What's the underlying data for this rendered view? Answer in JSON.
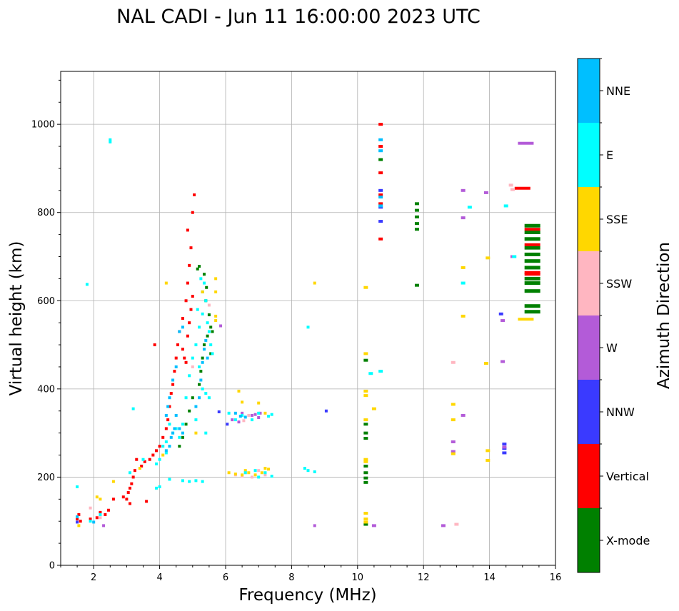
{
  "chart_data": {
    "type": "scatter",
    "title": "NAL CADI - Jun 11 16:00:00 2023 UTC",
    "xlabel": "Frequency (MHz)",
    "ylabel": "Virtual height (km)",
    "xlim": [
      1,
      16
    ],
    "ylim": [
      0,
      1120
    ],
    "xticks": [
      2,
      4,
      6,
      8,
      10,
      12,
      14,
      16
    ],
    "yticks": [
      0,
      200,
      400,
      600,
      800,
      1000
    ],
    "grid": true,
    "colorbar": {
      "title": "Azimuth Direction",
      "categories": [
        {
          "name": "X-mode",
          "color": "#008000"
        },
        {
          "name": "Vertical",
          "color": "#ff0000"
        },
        {
          "name": "NNW",
          "color": "#3a3aff"
        },
        {
          "name": "W",
          "color": "#b35bd8"
        },
        {
          "name": "SSW",
          "color": "#ffb6c1"
        },
        {
          "name": "SSE",
          "color": "#ffd700"
        },
        {
          "name": "E",
          "color": "#00ffff"
        },
        {
          "name": "NNE",
          "color": "#00bfff"
        }
      ]
    },
    "series": [
      {
        "name": "X-mode",
        "points": [
          [
            5.15,
            672
          ],
          [
            5.2,
            678
          ],
          [
            5.3,
            620
          ],
          [
            5.4,
            600
          ],
          [
            5.5,
            568
          ],
          [
            5.55,
            540
          ],
          [
            5.45,
            520
          ],
          [
            5.35,
            500
          ],
          [
            5.3,
            470
          ],
          [
            5.25,
            440
          ],
          [
            5.2,
            410
          ],
          [
            5.0,
            380
          ],
          [
            4.8,
            320
          ],
          [
            4.7,
            290
          ],
          [
            4.6,
            270
          ],
          [
            4.9,
            350
          ],
          [
            5.35,
            660
          ],
          [
            5.42,
            630
          ],
          [
            5.6,
            530
          ],
          [
            5.55,
            480
          ],
          [
            10.25,
            320
          ],
          [
            10.25,
            300
          ],
          [
            10.25,
            288
          ],
          [
            10.25,
            225
          ],
          [
            10.25,
            210
          ],
          [
            10.25,
            198
          ],
          [
            10.25,
            188
          ],
          [
            10.25,
            465
          ],
          [
            10.25,
            93
          ],
          [
            11.8,
            820
          ],
          [
            11.8,
            805
          ],
          [
            11.8,
            790
          ],
          [
            11.8,
            775
          ],
          [
            11.8,
            762
          ],
          [
            11.8,
            635
          ],
          [
            10.7,
            920
          ],
          [
            15.3,
            770
          ],
          [
            15.3,
            755
          ],
          [
            15.3,
            740
          ],
          [
            15.3,
            720
          ],
          [
            15.3,
            705
          ],
          [
            15.3,
            690
          ],
          [
            15.3,
            675
          ],
          [
            15.3,
            650
          ],
          [
            15.3,
            640
          ],
          [
            15.3,
            622
          ],
          [
            15.3,
            588
          ],
          [
            15.3,
            575
          ]
        ]
      },
      {
        "name": "Vertical",
        "points": [
          [
            1.5,
            105
          ],
          [
            1.55,
            115
          ],
          [
            1.6,
            100
          ],
          [
            1.9,
            105
          ],
          [
            2.1,
            108
          ],
          [
            2.2,
            120
          ],
          [
            2.35,
            115
          ],
          [
            2.45,
            125
          ],
          [
            2.6,
            150
          ],
          [
            3.0,
            150
          ],
          [
            3.05,
            165
          ],
          [
            3.1,
            175
          ],
          [
            3.15,
            185
          ],
          [
            3.2,
            200
          ],
          [
            3.25,
            215
          ],
          [
            3.1,
            140
          ],
          [
            3.3,
            240
          ],
          [
            3.45,
            225
          ],
          [
            3.55,
            235
          ],
          [
            3.7,
            240
          ],
          [
            3.8,
            250
          ],
          [
            3.9,
            260
          ],
          [
            4.0,
            270
          ],
          [
            4.1,
            290
          ],
          [
            4.2,
            310
          ],
          [
            4.25,
            330
          ],
          [
            4.3,
            360
          ],
          [
            4.35,
            390
          ],
          [
            4.4,
            410
          ],
          [
            4.45,
            440
          ],
          [
            4.5,
            470
          ],
          [
            4.55,
            500
          ],
          [
            4.6,
            530
          ],
          [
            4.7,
            490
          ],
          [
            4.75,
            470
          ],
          [
            4.8,
            460
          ],
          [
            4.85,
            520
          ],
          [
            4.9,
            550
          ],
          [
            4.95,
            580
          ],
          [
            5.0,
            610
          ],
          [
            4.7,
            560
          ],
          [
            4.8,
            600
          ],
          [
            4.85,
            640
          ],
          [
            4.9,
            680
          ],
          [
            4.95,
            720
          ],
          [
            4.85,
            760
          ],
          [
            5.0,
            800
          ],
          [
            5.05,
            840
          ],
          [
            3.85,
            500
          ],
          [
            3.6,
            145
          ],
          [
            10.7,
            1000
          ],
          [
            10.7,
            890
          ],
          [
            10.7,
            840
          ],
          [
            10.7,
            820
          ],
          [
            10.7,
            740
          ],
          [
            10.7,
            950
          ],
          [
            15.0,
            855
          ],
          [
            15.3,
            762
          ],
          [
            15.3,
            727
          ],
          [
            15.3,
            664
          ],
          [
            15.3,
            660
          ],
          [
            2.9,
            155
          ]
        ]
      },
      {
        "name": "NNW",
        "points": [
          [
            14.45,
            275
          ],
          [
            14.45,
            265
          ],
          [
            14.45,
            255
          ],
          [
            14.35,
            570
          ],
          [
            10.7,
            780
          ],
          [
            10.7,
            812
          ],
          [
            9.05,
            350
          ],
          [
            6.05,
            320
          ],
          [
            5.8,
            348
          ],
          [
            10.7,
            850
          ],
          [
            1.5,
            98
          ]
        ]
      },
      {
        "name": "W",
        "points": [
          [
            6.5,
            345
          ],
          [
            6.8,
            340
          ],
          [
            7.0,
            335
          ],
          [
            6.2,
            330
          ],
          [
            6.4,
            325
          ],
          [
            6.9,
            342
          ],
          [
            7.05,
            345
          ],
          [
            13.2,
            340
          ],
          [
            13.2,
            850
          ],
          [
            12.9,
            280
          ],
          [
            14.4,
            555
          ],
          [
            14.4,
            462
          ],
          [
            14.7,
            700
          ],
          [
            15.1,
            957
          ],
          [
            13.2,
            788
          ],
          [
            13.9,
            845
          ],
          [
            12.9,
            258
          ],
          [
            14.45,
            268
          ],
          [
            10.5,
            90
          ],
          [
            8.7,
            90
          ],
          [
            12.6,
            90
          ],
          [
            2.3,
            90
          ],
          [
            5.85,
            543
          ]
        ]
      },
      {
        "name": "SSW",
        "points": [
          [
            6.3,
            205
          ],
          [
            6.5,
            202
          ],
          [
            6.6,
            210
          ],
          [
            6.8,
            200
          ],
          [
            7.0,
            215
          ],
          [
            7.2,
            205
          ],
          [
            6.7,
            340
          ],
          [
            5.0,
            450
          ],
          [
            5.5,
            590
          ],
          [
            14.65,
            862
          ],
          [
            14.7,
            852
          ],
          [
            12.9,
            460
          ],
          [
            13.0,
            93
          ],
          [
            6.55,
            328
          ],
          [
            1.9,
            130
          ],
          [
            2.2,
            108
          ]
        ]
      },
      {
        "name": "SSE",
        "points": [
          [
            6.1,
            210
          ],
          [
            6.3,
            207
          ],
          [
            6.5,
            205
          ],
          [
            6.6,
            215
          ],
          [
            6.7,
            210
          ],
          [
            6.9,
            205
          ],
          [
            7.1,
            210
          ],
          [
            7.2,
            220
          ],
          [
            7.3,
            218
          ],
          [
            6.4,
            395
          ],
          [
            6.5,
            370
          ],
          [
            7.0,
            368
          ],
          [
            7.2,
            345
          ],
          [
            10.25,
            630
          ],
          [
            10.25,
            480
          ],
          [
            10.25,
            395
          ],
          [
            10.25,
            385
          ],
          [
            10.25,
            330
          ],
          [
            10.25,
            240
          ],
          [
            10.25,
            235
          ],
          [
            10.25,
            118
          ],
          [
            10.25,
            105
          ],
          [
            10.25,
            98
          ],
          [
            10.5,
            355
          ],
          [
            12.9,
            365
          ],
          [
            12.9,
            330
          ],
          [
            13.2,
            675
          ],
          [
            13.2,
            565
          ],
          [
            13.95,
            697
          ],
          [
            13.9,
            458
          ],
          [
            13.95,
            260
          ],
          [
            13.95,
            238
          ],
          [
            15.1,
            558
          ],
          [
            8.7,
            640
          ],
          [
            5.7,
            650
          ],
          [
            5.7,
            620
          ],
          [
            5.7,
            555
          ],
          [
            5.7,
            565
          ],
          [
            5.3,
            620
          ],
          [
            4.2,
            640
          ],
          [
            3.4,
            220
          ],
          [
            2.6,
            190
          ],
          [
            2.2,
            150
          ],
          [
            2.1,
            155
          ],
          [
            4.1,
            250
          ],
          [
            1.55,
            90
          ],
          [
            12.9,
            253
          ],
          [
            5.1,
            300
          ]
        ]
      },
      {
        "name": "E",
        "points": [
          [
            1.5,
            178
          ],
          [
            1.8,
            637
          ],
          [
            2.5,
            965
          ],
          [
            2.5,
            960
          ],
          [
            3.2,
            355
          ],
          [
            3.9,
            175
          ],
          [
            4.0,
            178
          ],
          [
            4.3,
            195
          ],
          [
            4.7,
            192
          ],
          [
            4.9,
            190
          ],
          [
            5.1,
            192
          ],
          [
            5.3,
            190
          ],
          [
            4.2,
            280
          ],
          [
            4.3,
            320
          ],
          [
            4.4,
            300
          ],
          [
            4.5,
            310
          ],
          [
            4.6,
            290
          ],
          [
            4.2,
            255
          ],
          [
            4.0,
            240
          ],
          [
            4.1,
            270
          ],
          [
            3.9,
            230
          ],
          [
            4.7,
            320
          ],
          [
            4.8,
            380
          ],
          [
            4.9,
            430
          ],
          [
            5.0,
            470
          ],
          [
            5.1,
            500
          ],
          [
            5.2,
            540
          ],
          [
            5.3,
            570
          ],
          [
            5.4,
            600
          ],
          [
            5.45,
            550
          ],
          [
            5.5,
            530
          ],
          [
            5.55,
            500
          ],
          [
            5.6,
            480
          ],
          [
            5.3,
            400
          ],
          [
            5.4,
            390
          ],
          [
            5.2,
            450
          ],
          [
            5.1,
            330
          ],
          [
            5.4,
            300
          ],
          [
            5.5,
            380
          ],
          [
            5.15,
            580
          ],
          [
            5.35,
            640
          ],
          [
            5.25,
            650
          ],
          [
            6.6,
            210
          ],
          [
            6.9,
            215
          ],
          [
            7.0,
            200
          ],
          [
            7.2,
            210
          ],
          [
            7.4,
            202
          ],
          [
            6.5,
            340
          ],
          [
            6.8,
            330
          ],
          [
            7.0,
            345
          ],
          [
            7.3,
            338
          ],
          [
            7.4,
            342
          ],
          [
            8.4,
            220
          ],
          [
            8.5,
            215
          ],
          [
            8.7,
            212
          ],
          [
            8.5,
            540
          ],
          [
            10.7,
            440
          ],
          [
            10.4,
            435
          ],
          [
            13.4,
            812
          ],
          [
            14.5,
            815
          ],
          [
            13.2,
            640
          ],
          [
            14.75,
            700
          ],
          [
            6.1,
            345
          ],
          [
            6.3,
            330
          ],
          [
            1.9,
            100
          ],
          [
            2.2,
            115
          ],
          [
            3.1,
            210
          ],
          [
            3.5,
            240
          ]
        ]
      },
      {
        "name": "NNE",
        "points": [
          [
            4.2,
            260
          ],
          [
            4.3,
            270
          ],
          [
            4.35,
            290
          ],
          [
            4.4,
            300
          ],
          [
            4.45,
            310
          ],
          [
            4.2,
            340
          ],
          [
            4.25,
            360
          ],
          [
            4.3,
            380
          ],
          [
            4.5,
            340
          ],
          [
            4.6,
            310
          ],
          [
            4.7,
            300
          ],
          [
            4.4,
            420
          ],
          [
            4.5,
            450
          ],
          [
            5.1,
            360
          ],
          [
            5.2,
            380
          ],
          [
            5.25,
            420
          ],
          [
            5.3,
            460
          ],
          [
            5.35,
            490
          ],
          [
            5.4,
            510
          ],
          [
            5.45,
            470
          ],
          [
            6.3,
            345
          ],
          [
            6.45,
            338
          ],
          [
            6.6,
            336
          ],
          [
            10.7,
            965
          ],
          [
            10.7,
            940
          ],
          [
            10.7,
            835
          ],
          [
            10.7,
            815
          ],
          [
            4.6,
            530
          ],
          [
            4.7,
            540
          ],
          [
            1.5,
            110
          ],
          [
            2.0,
            98
          ]
        ]
      }
    ]
  }
}
